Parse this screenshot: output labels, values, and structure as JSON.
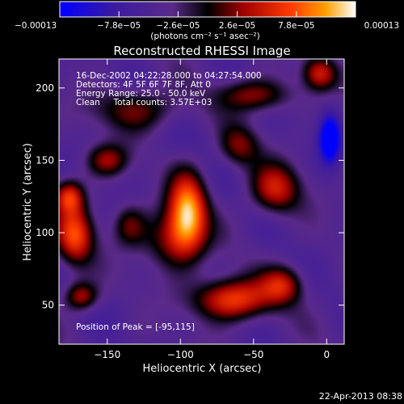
{
  "chart_data": {
    "type": "heatmap",
    "title": "Reconstructed RHESSI Image",
    "xlabel": "Heliocentric X (arcsec)",
    "ylabel": "Heliocentric Y (arcsec)",
    "xlim": [
      -183,
      12
    ],
    "ylim": [
      23,
      220
    ],
    "xticks": [
      -150,
      -100,
      -50,
      0
    ],
    "xtick_labels": [
      "−150",
      "−100",
      "−50",
      "0"
    ],
    "yticks": [
      50,
      100,
      150,
      200
    ],
    "ytick_labels": [
      "50",
      "100",
      "150",
      "200"
    ],
    "colorbar": {
      "min": -0.00013,
      "max": 0.00013,
      "ticks": [
        -0.00013,
        -7.8e-05,
        -2.6e-05,
        2.6e-05,
        7.8e-05,
        0.00013
      ],
      "tick_labels": [
        "−0.00013",
        "−7.8e−05",
        "−2.6e−05",
        "2.6e−05",
        "7.8e−05",
        "0.00013"
      ],
      "units": "(photons cm⁻² s⁻¹ asec⁻²)"
    },
    "annotations": [
      "16-Dec-2002 04:22:28.000 to 04:27:54.000",
      "Detectors: 4F 5F 6F 7F 8F, Att 0",
      "Energy Range: 25.0 - 50.0 keV",
      "Clean     Total counts: 3.57E+03"
    ],
    "peak_label": "Position of Peak = [-95,115]",
    "peak": {
      "x": -95,
      "y": 115,
      "value": 0.00013
    },
    "sources": [
      {
        "x": -95,
        "y": 115,
        "sx": 9,
        "sy": 18,
        "value": 0.00013
      },
      {
        "x": -105,
        "y": 95,
        "sx": 14,
        "sy": 14,
        "value": 6e-05
      },
      {
        "x": -65,
        "y": 54,
        "sx": 18,
        "sy": 10,
        "value": 0.000105
      },
      {
        "x": -30,
        "y": 64,
        "sx": 10,
        "sy": 9,
        "value": 7e-05
      },
      {
        "x": -172,
        "y": 98,
        "sx": 9,
        "sy": 14,
        "value": 0.0001
      },
      {
        "x": -176,
        "y": 125,
        "sx": 7,
        "sy": 8,
        "value": 8.5e-05
      },
      {
        "x": -168,
        "y": 56,
        "sx": 8,
        "sy": 7,
        "value": 7e-05
      },
      {
        "x": -35,
        "y": 130,
        "sx": 12,
        "sy": 12,
        "value": 7.5e-05
      },
      {
        "x": -5,
        "y": 210,
        "sx": 8,
        "sy": 8,
        "value": 7.5e-05
      },
      {
        "x": -50,
        "y": 195,
        "sx": 18,
        "sy": 8,
        "value": 6e-05
      },
      {
        "x": -130,
        "y": 185,
        "sx": 20,
        "sy": 10,
        "value": 5e-05
      },
      {
        "x": -150,
        "y": 150,
        "sx": 10,
        "sy": 8,
        "value": 6e-05
      },
      {
        "x": -60,
        "y": 160,
        "sx": 10,
        "sy": 10,
        "value": 5e-05
      },
      {
        "x": -135,
        "y": 105,
        "sx": 8,
        "sy": 10,
        "value": 4.5e-05
      },
      {
        "x": 2,
        "y": 165,
        "sx": 5,
        "sy": 12,
        "value": -0.00013
      },
      {
        "x": -85,
        "y": 165,
        "sx": 14,
        "sy": 10,
        "value": -2e-05
      },
      {
        "x": -140,
        "y": 45,
        "sx": 10,
        "sy": 8,
        "value": -2e-05
      }
    ]
  },
  "footer": {
    "timestamp": "22-Apr-2013 08:38"
  }
}
